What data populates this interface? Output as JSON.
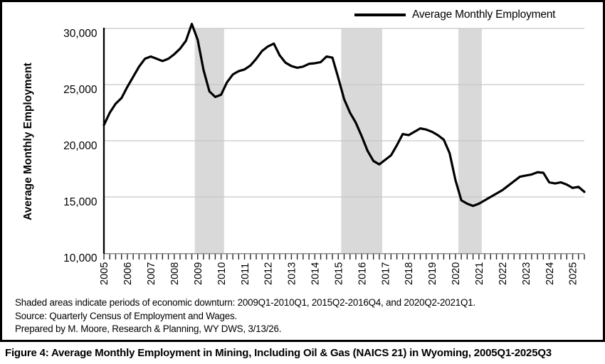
{
  "legend": {
    "label": "Average Monthly Employment"
  },
  "y_axis_title": "Average Monthly Employment",
  "footnotes": {
    "shaded": "Shaded areas indicate periods of economic downturn: 2009Q1-2010Q1, 2015Q2-2016Q4, and 2020Q2-2021Q1.",
    "source": "Source: Quarterly Census of Employment and Wages.",
    "prepared": "Prepared by M. Moore, Research & Planning, WY DWS, 3/13/26."
  },
  "caption": "Figure 4: Average Monthly Employment in Mining, Including Oil & Gas (NAICS 21) in Wyoming, 2005Q1-2025Q3",
  "chart_data": {
    "type": "line",
    "title": "",
    "xlabel": "",
    "ylabel": "Average Monthly Employment",
    "ylim": [
      10000,
      30000
    ],
    "y_ticks": [
      10000,
      15000,
      20000,
      25000,
      30000
    ],
    "y_tick_labels": [
      "10,000",
      "15,000",
      "20,000",
      "25,000",
      "30,000"
    ],
    "year_tick_labels": [
      "2005",
      "2006",
      "2007",
      "2008",
      "2009",
      "2010",
      "2011",
      "2012",
      "2013",
      "2014",
      "2015",
      "2016",
      "2017",
      "2018",
      "2019",
      "2020",
      "2021",
      "2022",
      "2023",
      "2024",
      "2025"
    ],
    "grid": true,
    "legend_position": "top-right",
    "line_color": "#000000",
    "grid_color": "#c6c6c6",
    "band_color": "#d9d9d9",
    "categories": [
      "2005Q1",
      "2005Q2",
      "2005Q3",
      "2005Q4",
      "2006Q1",
      "2006Q2",
      "2006Q3",
      "2006Q4",
      "2007Q1",
      "2007Q2",
      "2007Q3",
      "2007Q4",
      "2008Q1",
      "2008Q2",
      "2008Q3",
      "2008Q4",
      "2009Q1",
      "2009Q2",
      "2009Q3",
      "2009Q4",
      "2010Q1",
      "2010Q2",
      "2010Q3",
      "2010Q4",
      "2011Q1",
      "2011Q2",
      "2011Q3",
      "2011Q4",
      "2012Q1",
      "2012Q2",
      "2012Q3",
      "2012Q4",
      "2013Q1",
      "2013Q2",
      "2013Q3",
      "2013Q4",
      "2014Q1",
      "2014Q2",
      "2014Q3",
      "2014Q4",
      "2015Q1",
      "2015Q2",
      "2015Q3",
      "2015Q4",
      "2016Q1",
      "2016Q2",
      "2016Q3",
      "2016Q4",
      "2017Q1",
      "2017Q2",
      "2017Q3",
      "2017Q4",
      "2018Q1",
      "2018Q2",
      "2018Q3",
      "2018Q4",
      "2019Q1",
      "2019Q2",
      "2019Q3",
      "2019Q4",
      "2020Q1",
      "2020Q2",
      "2020Q3",
      "2020Q4",
      "2021Q1",
      "2021Q2",
      "2021Q3",
      "2021Q4",
      "2022Q1",
      "2022Q2",
      "2022Q3",
      "2022Q4",
      "2023Q1",
      "2023Q2",
      "2023Q3",
      "2023Q4",
      "2024Q1",
      "2024Q2",
      "2024Q3",
      "2024Q4",
      "2025Q1",
      "2025Q2",
      "2025Q3"
    ],
    "series": [
      {
        "name": "Average Monthly Employment",
        "values": [
          21400,
          22500,
          23300,
          23800,
          24800,
          25700,
          26600,
          27300,
          27500,
          27300,
          27100,
          27300,
          27700,
          28200,
          28900,
          30400,
          29000,
          26300,
          24400,
          23900,
          24100,
          25200,
          25900,
          26200,
          26350,
          26700,
          27300,
          28000,
          28400,
          28650,
          27600,
          26950,
          26650,
          26500,
          26600,
          26850,
          26900,
          27000,
          27500,
          27400,
          25600,
          23700,
          22500,
          21600,
          20400,
          19100,
          18200,
          17900,
          18300,
          18700,
          19600,
          20600,
          20500,
          20800,
          21100,
          21000,
          20800,
          20500,
          20100,
          18900,
          16500,
          14700,
          14400,
          14200,
          14400,
          14700,
          15000,
          15300,
          15600,
          16000,
          16400,
          16800,
          16900,
          17000,
          17200,
          17150,
          16300,
          16200,
          16300,
          16100,
          15800,
          15900,
          15450
        ]
      }
    ],
    "recession_bands": [
      {
        "start": "2009Q1",
        "end": "2010Q1"
      },
      {
        "start": "2015Q2",
        "end": "2016Q4"
      },
      {
        "start": "2020Q2",
        "end": "2021Q1"
      }
    ]
  }
}
